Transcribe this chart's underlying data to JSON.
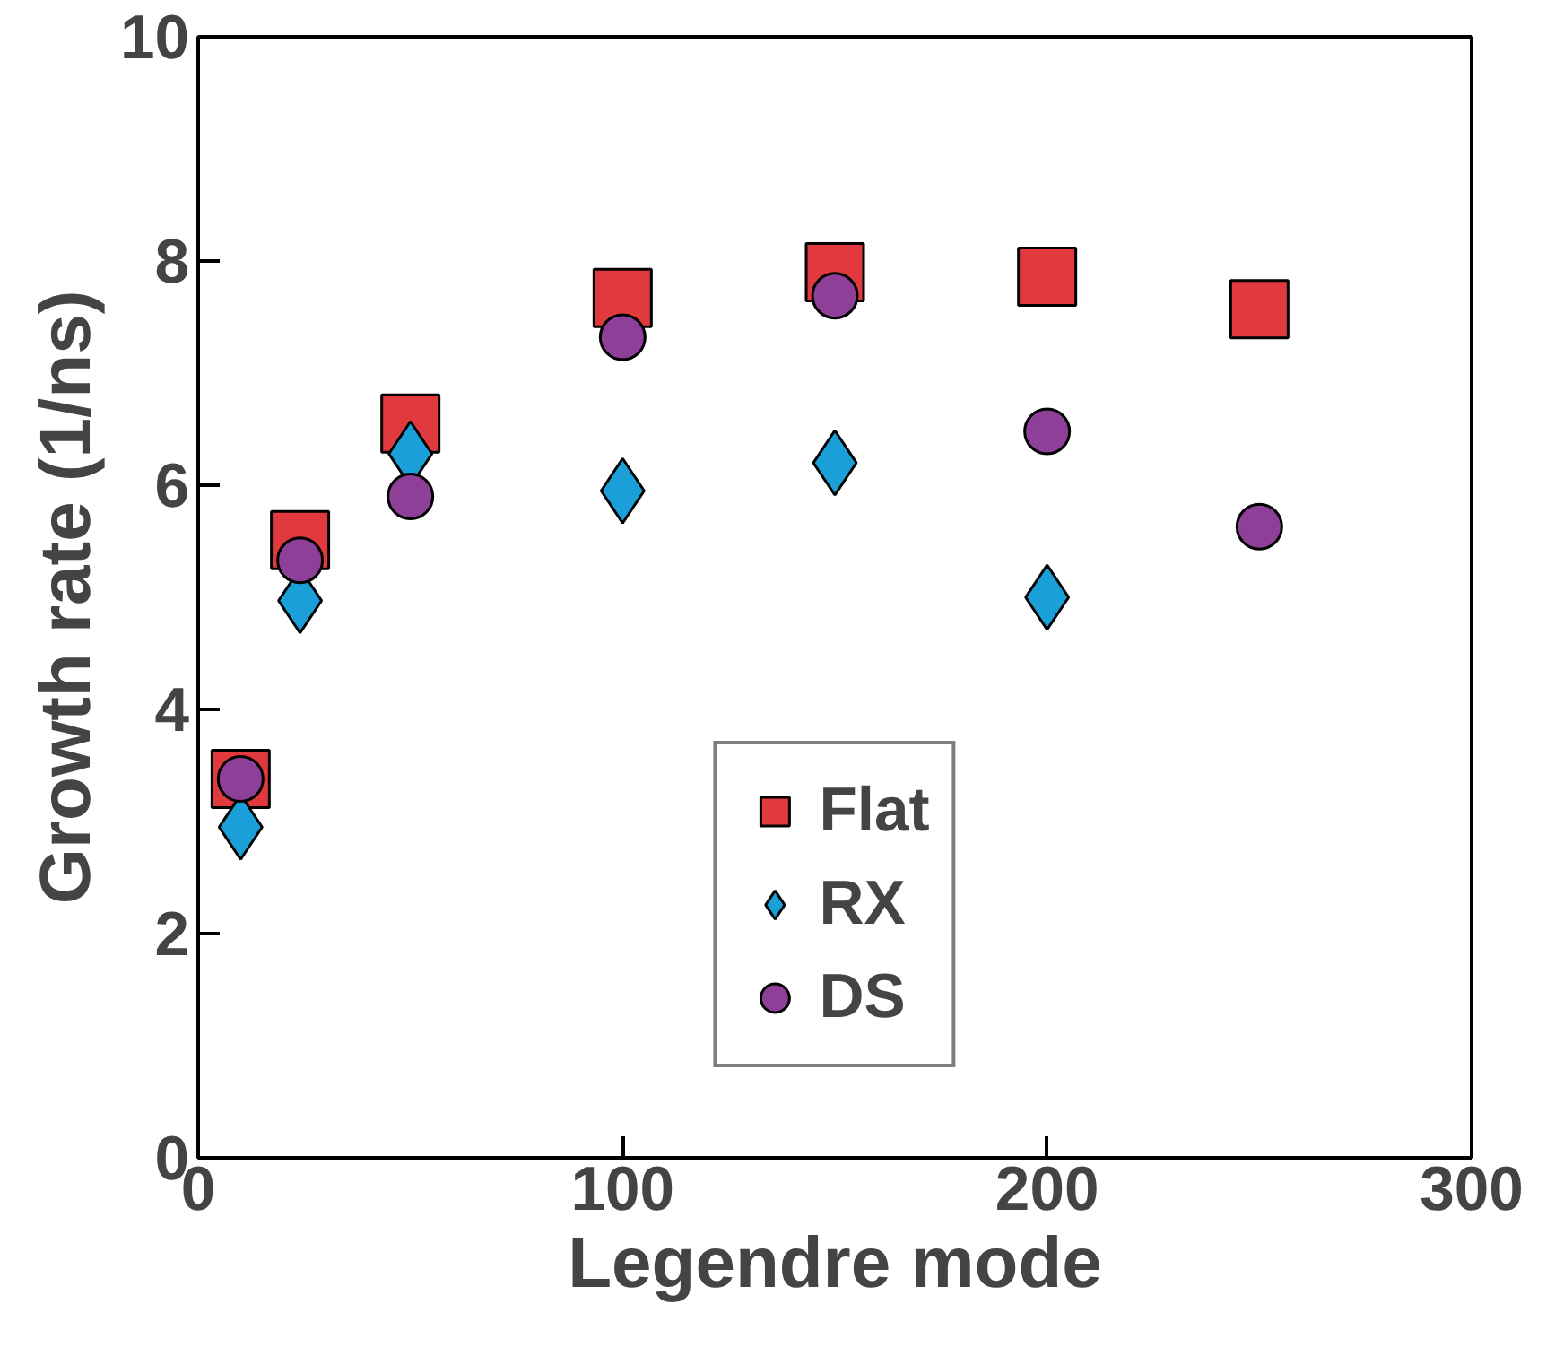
{
  "chart_data": {
    "type": "scatter",
    "xlabel": "Legendre mode",
    "ylabel": "Growth rate (1/ns)",
    "xlim": [
      0,
      300
    ],
    "ylim": [
      0,
      10
    ],
    "xticks": [
      0,
      100,
      200,
      300
    ],
    "yticks": [
      0,
      2,
      4,
      6,
      8,
      10
    ],
    "grid": false,
    "legend": "bottom",
    "series": [
      {
        "name": "Flat",
        "color": "#e03a3e",
        "marker": "square",
        "x": [
          10,
          24,
          50,
          100,
          150,
          200,
          250
        ],
        "values": [
          3.38,
          5.51,
          6.55,
          7.67,
          7.9,
          7.86,
          7.57
        ]
      },
      {
        "name": "RX",
        "color": "#1a9fd8",
        "marker": "diamond",
        "x": [
          10,
          24,
          50,
          100,
          150,
          200
        ],
        "values": [
          2.95,
          4.97,
          6.28,
          5.95,
          6.2,
          5.0
        ]
      },
      {
        "name": "DS",
        "color": "#8e3f98",
        "marker": "circle",
        "x": [
          10,
          24,
          50,
          100,
          150,
          200,
          250
        ],
        "values": [
          3.38,
          5.33,
          5.9,
          7.32,
          7.69,
          6.48,
          5.63
        ]
      }
    ]
  }
}
